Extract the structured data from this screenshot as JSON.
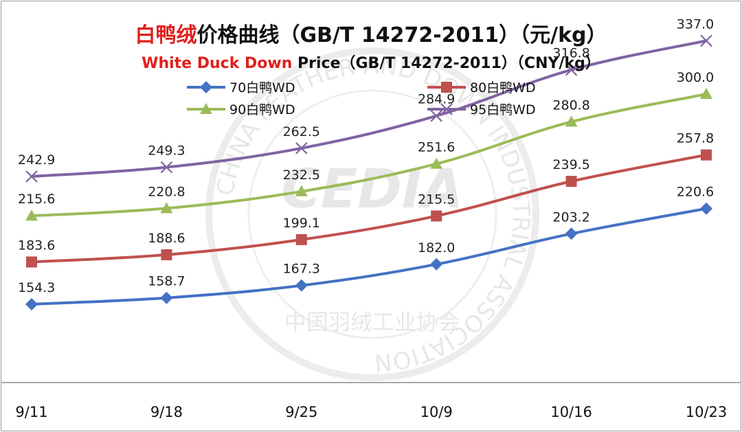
{
  "title": {
    "cn_highlight": "白鸭绒",
    "cn_rest": "价格曲线（GB/T 14272-2011）（元/kg）",
    "en_highlight": "White Duck Down",
    "en_rest": " Price（GB/T 14272-2011）（CNY/kg）"
  },
  "watermark": {
    "logo": "CEDIA",
    "ring_text": "CHINA FEATHER AND DOWN INDUSTRIAL ASSOCIATION",
    "cn_text": "中国羽绒工业协会"
  },
  "chart_data": {
    "type": "line",
    "categories": [
      "9/11",
      "9/18",
      "9/25",
      "10/9",
      "10/16",
      "10/23"
    ],
    "ylim": [
      100,
      350
    ],
    "grid": false,
    "legend_position": "top",
    "series": [
      {
        "name": "70白鸭WD",
        "values": [
          154.3,
          158.7,
          167.3,
          182.0,
          203.2,
          220.6
        ],
        "labels": [
          "154.3",
          "158.7",
          "167.3",
          "182.0",
          "203.2",
          "220.6"
        ],
        "color": "#4472c4",
        "marker": "diamond"
      },
      {
        "name": "80白鸭WD",
        "values": [
          183.6,
          188.6,
          199.1,
          215.5,
          239.5,
          257.8
        ],
        "labels": [
          "183.6",
          "188.6",
          "199.1",
          "215.5",
          "239.5",
          "257.8"
        ],
        "color": "#c0504d",
        "marker": "square"
      },
      {
        "name": "90白鸭WD",
        "values": [
          215.6,
          220.8,
          232.5,
          251.6,
          280.8,
          300.0
        ],
        "labels": [
          "215.6",
          "220.8",
          "232.5",
          "251.6",
          "280.8",
          "300.0"
        ],
        "color": "#9bbb59",
        "marker": "triangle"
      },
      {
        "name": "95白鸭WD",
        "values": [
          242.9,
          249.3,
          262.5,
          284.9,
          316.8,
          337.0
        ],
        "labels": [
          "242.9",
          "249.3",
          "262.5",
          "284.9",
          "316.8",
          "337.0"
        ],
        "color": "#8064a2",
        "marker": "x"
      }
    ]
  }
}
